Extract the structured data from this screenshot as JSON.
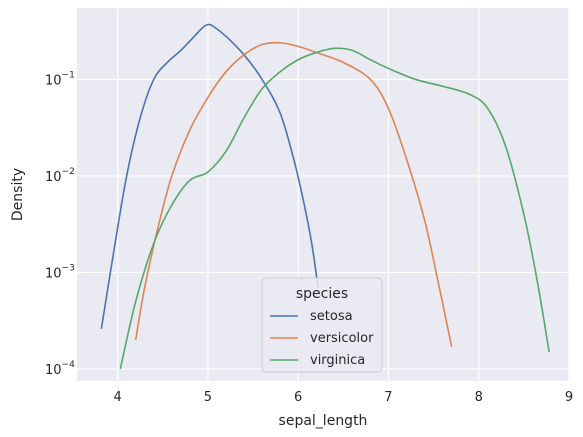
{
  "chart_data": {
    "type": "line",
    "xlabel": "sepal_length",
    "ylabel": "Density",
    "xlim": [
      3.55,
      9.0
    ],
    "ylim": [
      7.5e-05,
      0.55
    ],
    "yscale": "log",
    "grid": true,
    "x_ticks": [
      "4",
      "5",
      "6",
      "7",
      "8",
      "9"
    ],
    "y_ticks": [
      {
        "value": 0.0001,
        "base": "10",
        "exp": "−4"
      },
      {
        "value": 0.001,
        "base": "10",
        "exp": "−3"
      },
      {
        "value": 0.01,
        "base": "10",
        "exp": "−2"
      },
      {
        "value": 0.1,
        "base": "10",
        "exp": "−1"
      }
    ],
    "legend": {
      "title": "species",
      "position": "bottom-center"
    },
    "series": [
      {
        "name": "setosa",
        "color": "#4c72b0",
        "points": [
          [
            3.82,
            0.00026
          ],
          [
            3.95,
            0.0015
          ],
          [
            4.1,
            0.01
          ],
          [
            4.25,
            0.04
          ],
          [
            4.4,
            0.1
          ],
          [
            4.55,
            0.15
          ],
          [
            4.7,
            0.2
          ],
          [
            4.85,
            0.28
          ],
          [
            4.95,
            0.35
          ],
          [
            5.0,
            0.37
          ],
          [
            5.05,
            0.36
          ],
          [
            5.2,
            0.28
          ],
          [
            5.4,
            0.18
          ],
          [
            5.6,
            0.1
          ],
          [
            5.8,
            0.045
          ],
          [
            5.95,
            0.015
          ],
          [
            6.05,
            0.006
          ],
          [
            6.15,
            0.002
          ],
          [
            6.22,
            0.0007
          ]
        ]
      },
      {
        "name": "versicolor",
        "color": "#dd8452",
        "points": [
          [
            4.2,
            0.0002
          ],
          [
            4.3,
            0.0007
          ],
          [
            4.45,
            0.003
          ],
          [
            4.6,
            0.01
          ],
          [
            4.8,
            0.03
          ],
          [
            5.0,
            0.065
          ],
          [
            5.2,
            0.12
          ],
          [
            5.4,
            0.18
          ],
          [
            5.6,
            0.23
          ],
          [
            5.8,
            0.24
          ],
          [
            6.0,
            0.22
          ],
          [
            6.2,
            0.19
          ],
          [
            6.5,
            0.15
          ],
          [
            6.8,
            0.1
          ],
          [
            7.0,
            0.05
          ],
          [
            7.2,
            0.015
          ],
          [
            7.4,
            0.0035
          ],
          [
            7.55,
            0.0008
          ],
          [
            7.7,
            0.00017
          ]
        ]
      },
      {
        "name": "virginica",
        "color": "#55a868",
        "points": [
          [
            4.03,
            0.0001
          ],
          [
            4.2,
            0.0005
          ],
          [
            4.4,
            0.002
          ],
          [
            4.6,
            0.005
          ],
          [
            4.8,
            0.009
          ],
          [
            5.0,
            0.011
          ],
          [
            5.2,
            0.018
          ],
          [
            5.4,
            0.04
          ],
          [
            5.6,
            0.08
          ],
          [
            5.8,
            0.12
          ],
          [
            6.0,
            0.16
          ],
          [
            6.2,
            0.19
          ],
          [
            6.4,
            0.21
          ],
          [
            6.6,
            0.2
          ],
          [
            6.8,
            0.16
          ],
          [
            7.0,
            0.13
          ],
          [
            7.3,
            0.1
          ],
          [
            7.6,
            0.085
          ],
          [
            7.9,
            0.07
          ],
          [
            8.1,
            0.05
          ],
          [
            8.3,
            0.02
          ],
          [
            8.5,
            0.004
          ],
          [
            8.65,
            0.0008
          ],
          [
            8.78,
            0.00015
          ]
        ]
      }
    ]
  }
}
